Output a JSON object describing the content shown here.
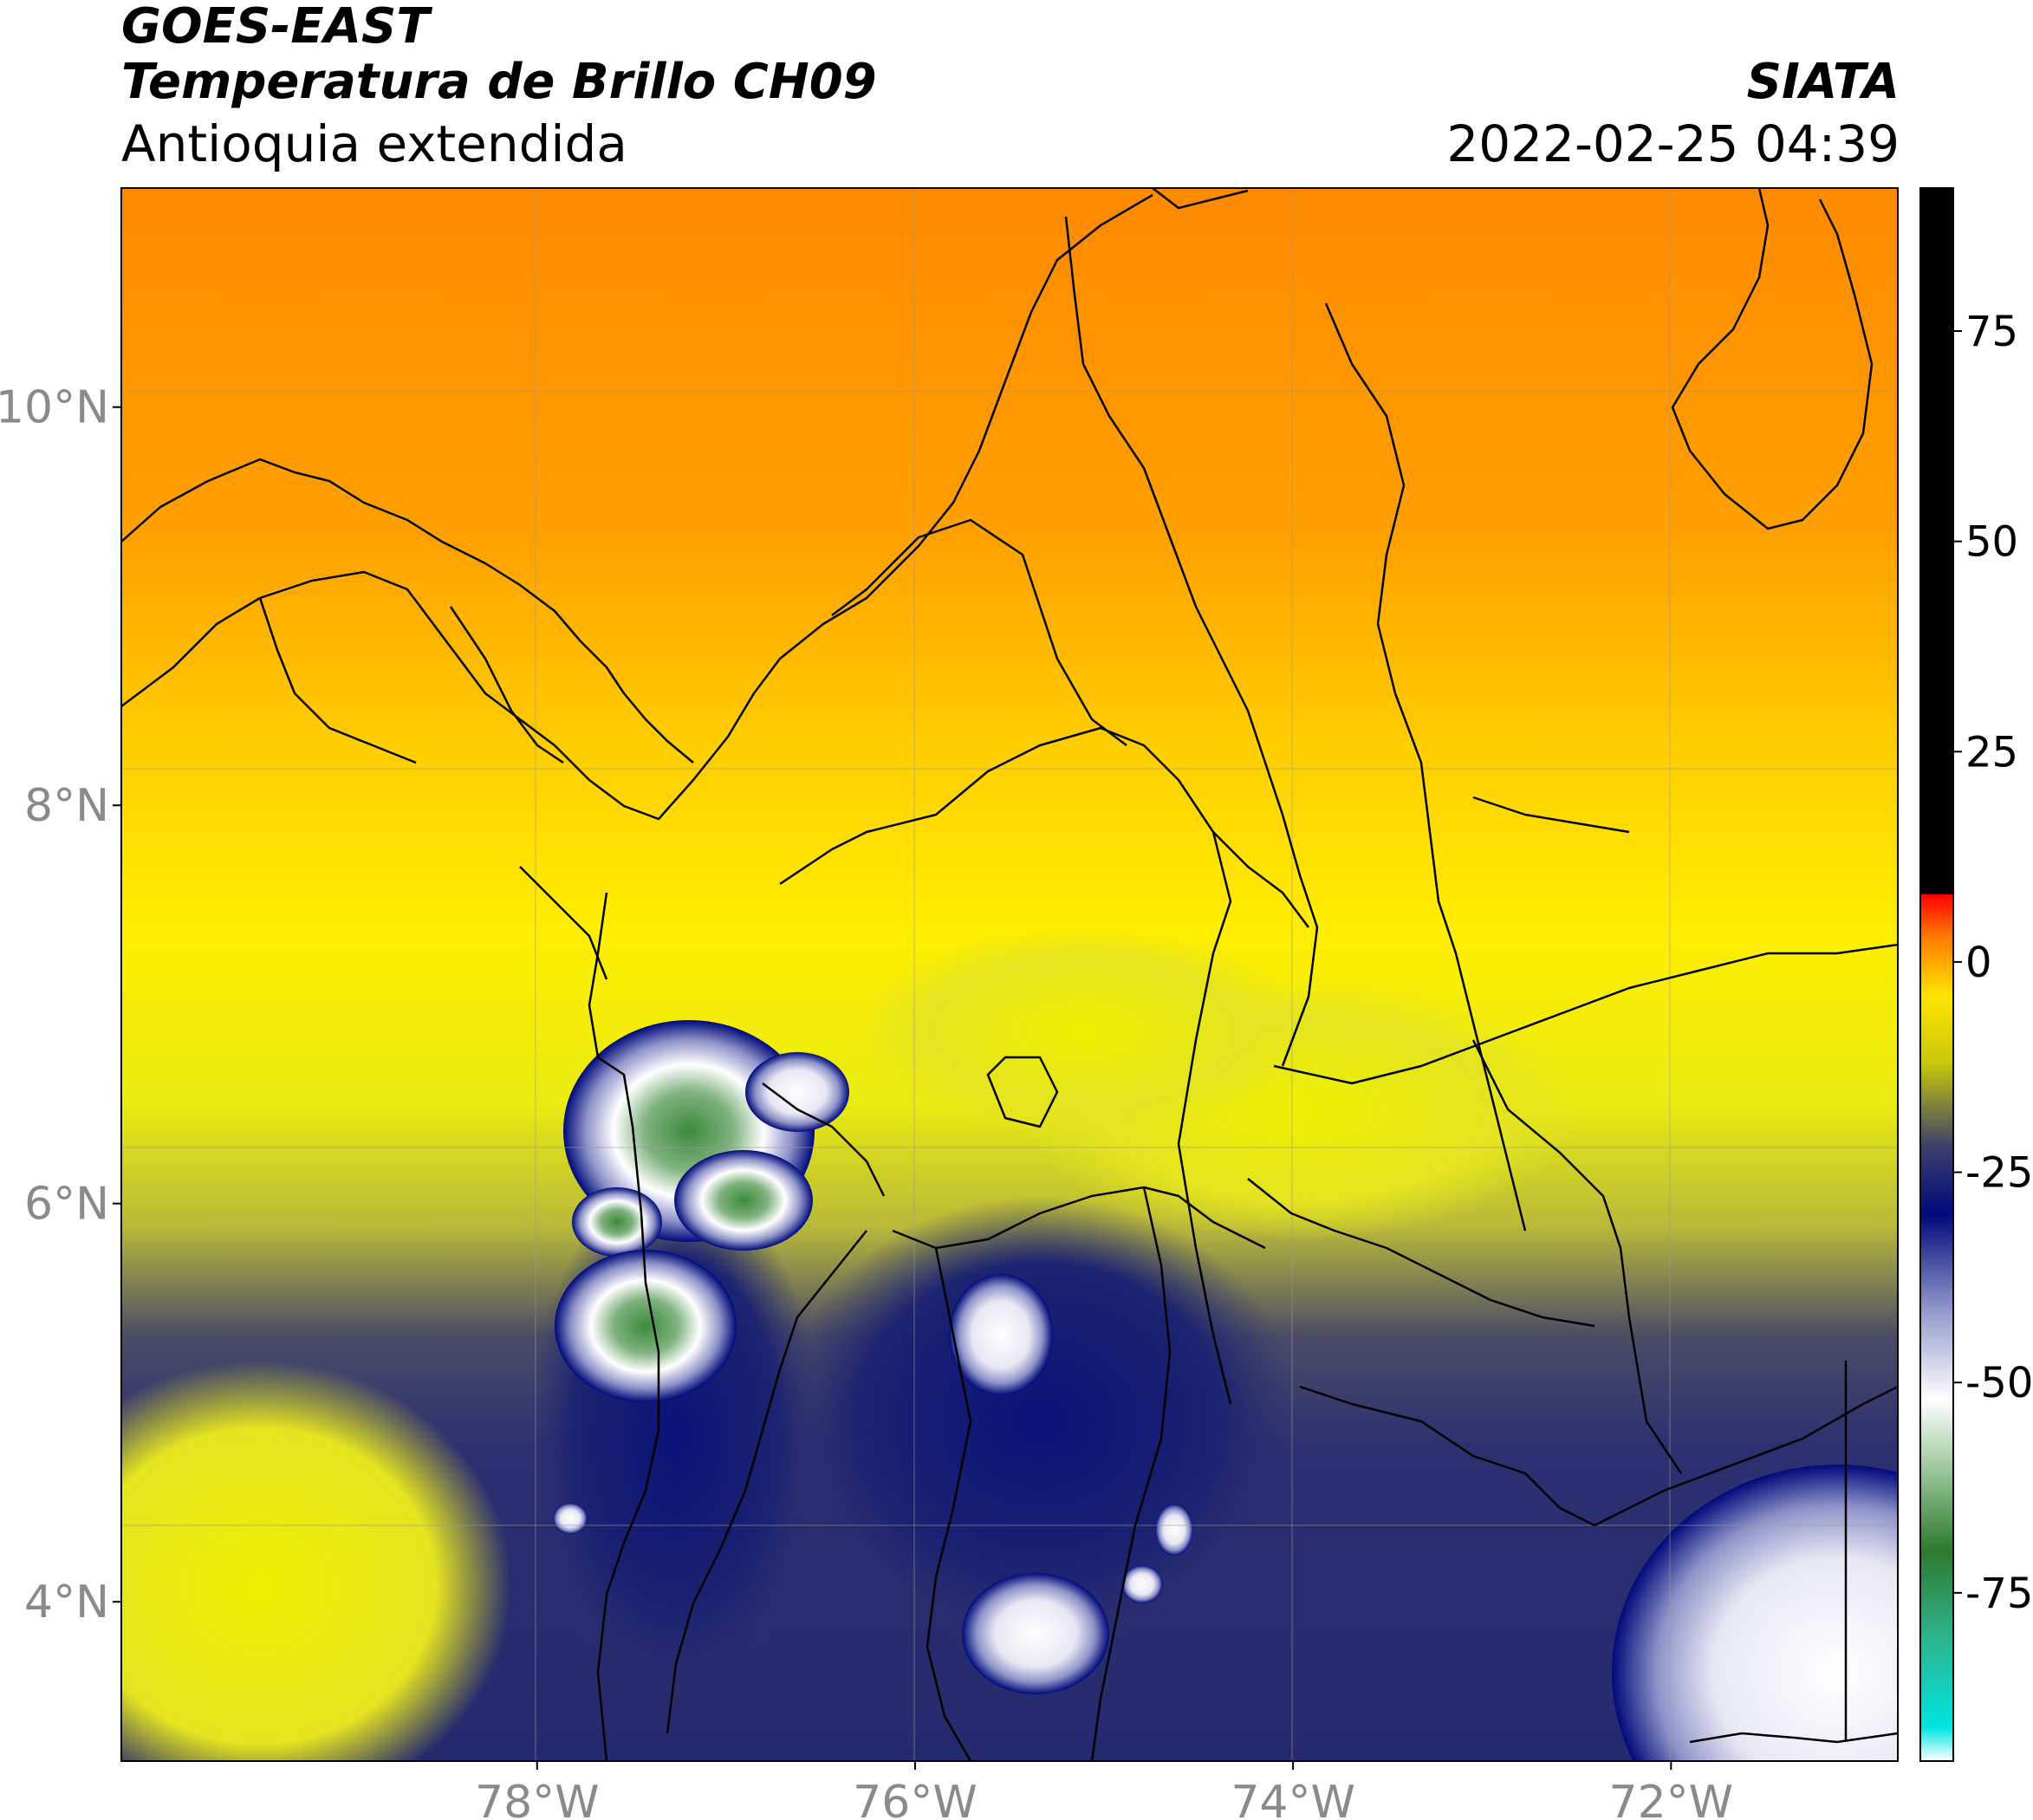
{
  "header": {
    "satellite": "GOES-EAST",
    "product": "Temperatura de Brillo CH09",
    "region": "Antioquia extendida",
    "agency": "SIATA",
    "datetime": "2022-02-25 04:39"
  },
  "map": {
    "projection": "PlateCarree",
    "lon_range": [
      -80.2,
      -70.8
    ],
    "lat_range": [
      3.2,
      11.1
    ],
    "lon_ticks": [
      {
        "value": -78,
        "label": "78°W"
      },
      {
        "value": -76,
        "label": "76°W"
      },
      {
        "value": -74,
        "label": "74°W"
      },
      {
        "value": -72,
        "label": "72°W"
      }
    ],
    "lat_ticks": [
      {
        "value": 10,
        "label": "10°N"
      },
      {
        "value": 8,
        "label": "8°N"
      },
      {
        "value": 6,
        "label": "6°N"
      },
      {
        "value": 4,
        "label": "4°N"
      }
    ],
    "grid": true
  },
  "colorbar": {
    "ticks": [
      {
        "value": 75,
        "label": "75"
      },
      {
        "value": 50,
        "label": "50"
      },
      {
        "value": 25,
        "label": "25"
      },
      {
        "value": 0,
        "label": "0"
      },
      {
        "value": -25,
        "label": "-25"
      },
      {
        "value": -50,
        "label": "-50"
      },
      {
        "value": -75,
        "label": "-75"
      }
    ],
    "range": [
      -95,
      92
    ],
    "stops": [
      {
        "value": -95,
        "color": "#ffffff"
      },
      {
        "value": -91,
        "color": "#00e5e0"
      },
      {
        "value": -80,
        "color": "#2eb28a"
      },
      {
        "value": -70,
        "color": "#2e7a2e"
      },
      {
        "value": -60,
        "color": "#9fca9f"
      },
      {
        "value": -52,
        "color": "#ffffff"
      },
      {
        "value": -42,
        "color": "#9aa0cf"
      },
      {
        "value": -30,
        "color": "#000a7a"
      },
      {
        "value": -22,
        "color": "#3b3f6b"
      },
      {
        "value": -12,
        "color": "#c8c80a"
      },
      {
        "value": -4,
        "color": "#ffe400"
      },
      {
        "value": 3,
        "color": "#ff7a00"
      },
      {
        "value": 8,
        "color": "#ff0000"
      },
      {
        "value": 8.1,
        "color": "#000000"
      },
      {
        "value": 92,
        "color": "#000000"
      }
    ]
  }
}
